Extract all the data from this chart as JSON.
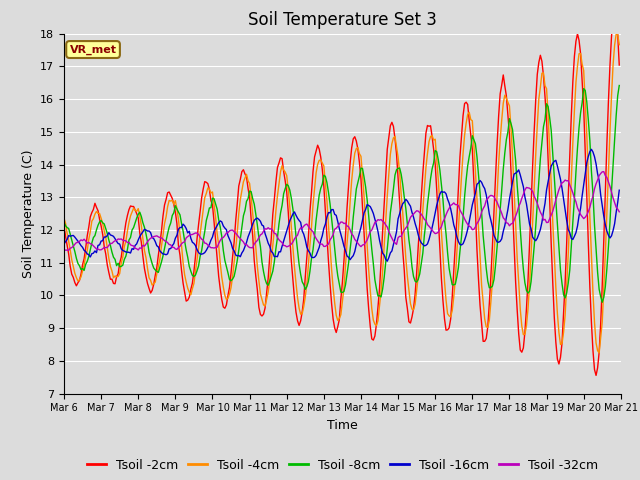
{
  "title": "Soil Temperature Set 3",
  "xlabel": "Time",
  "ylabel": "Soil Temperature (C)",
  "ylim": [
    7.0,
    18.0
  ],
  "yticks": [
    7.0,
    8.0,
    9.0,
    10.0,
    11.0,
    12.0,
    13.0,
    14.0,
    15.0,
    16.0,
    17.0,
    18.0
  ],
  "xtick_labels": [
    "Mar 6",
    "Mar 7",
    "Mar 8",
    "Mar 9",
    "Mar 10",
    "Mar 11",
    "Mar 12",
    "Mar 13",
    "Mar 14",
    "Mar 15",
    "Mar 16",
    "Mar 17",
    "Mar 18",
    "Mar 19",
    "Mar 20",
    "Mar 21"
  ],
  "series_colors": [
    "#ff0000",
    "#ff8c00",
    "#00bb00",
    "#0000cc",
    "#bb00bb"
  ],
  "series_labels": [
    "Tsoil -2cm",
    "Tsoil -4cm",
    "Tsoil -8cm",
    "Tsoil -16cm",
    "Tsoil -32cm"
  ],
  "annotation_text": "VR_met",
  "annotation_bbox_facecolor": "#ffff99",
  "annotation_bbox_edgecolor": "#8b6914",
  "plot_bg_color": "#dcdcdc",
  "fig_bg_color": "#dcdcdc",
  "grid_color": "#ffffff",
  "title_fontsize": 12,
  "axis_label_fontsize": 9,
  "tick_fontsize": 8,
  "legend_fontsize": 9,
  "num_points_per_day": 24,
  "num_days": 15
}
